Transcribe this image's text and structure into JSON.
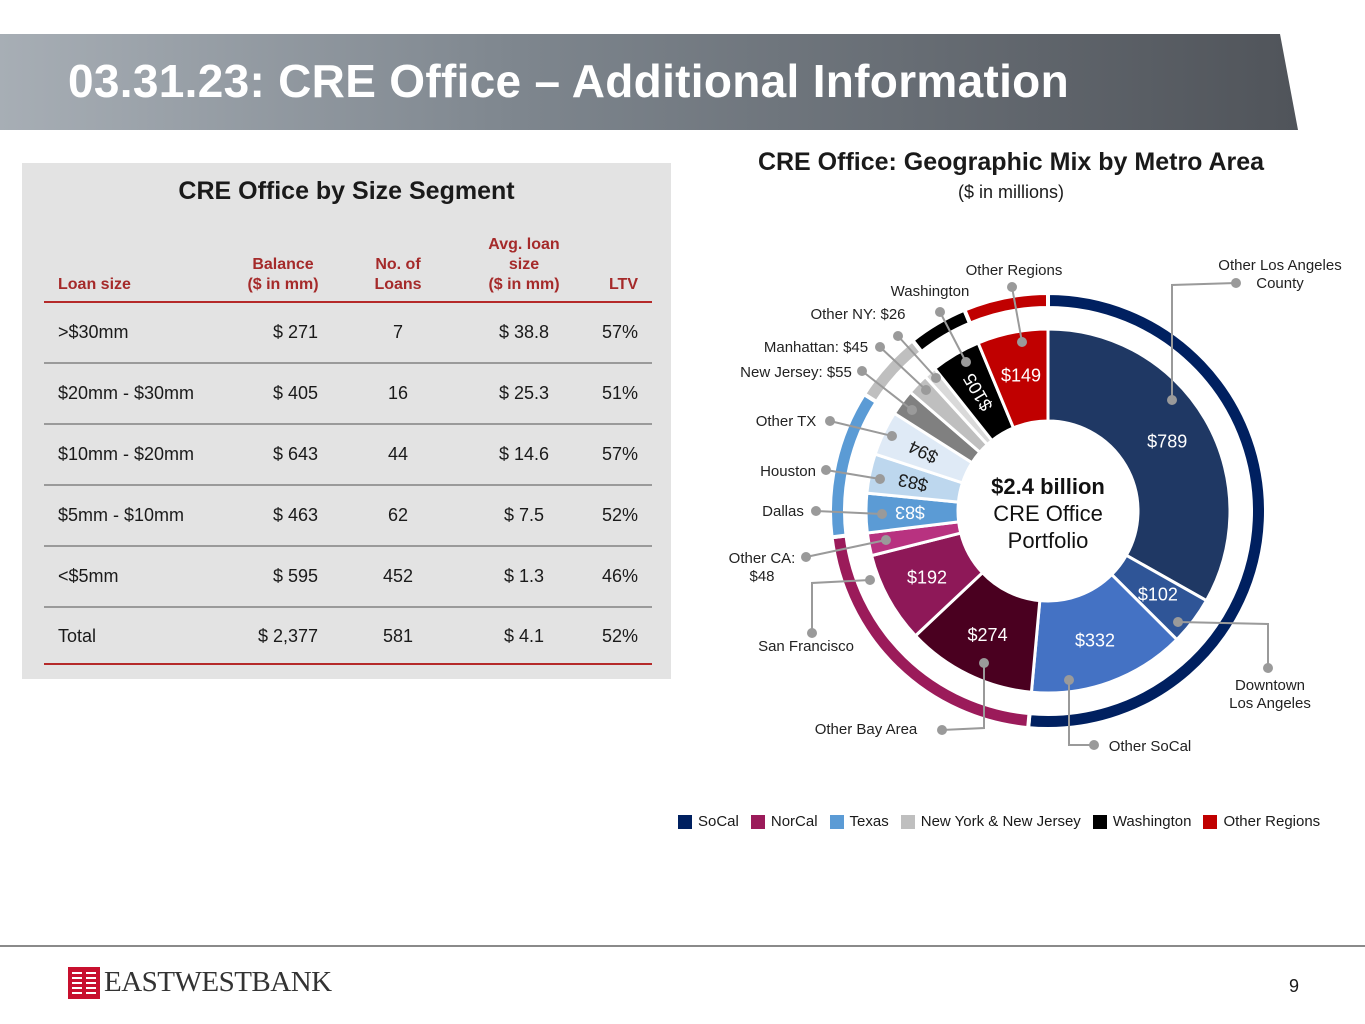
{
  "header": {
    "title": "03.31.23: CRE Office – Additional Information"
  },
  "size_segment": {
    "title": "CRE Office by Size Segment",
    "columns": [
      "Loan size",
      "Balance\n($ in mm)",
      "No. of\nLoans",
      "Avg. loan\nsize\n($ in mm)",
      "LTV"
    ],
    "rows": [
      [
        ">$30mm",
        "$ 271",
        "7",
        "$ 38.8",
        "57%"
      ],
      [
        "$20mm - $30mm",
        "$ 405",
        "16",
        "$ 25.3",
        "51%"
      ],
      [
        "$10mm - $20mm",
        "$ 643",
        "44",
        "$ 14.6",
        "57%"
      ],
      [
        "$5mm - $10mm",
        "$ 463",
        "62",
        "$ 7.5",
        "52%"
      ],
      [
        "<$5mm",
        "$ 595",
        "452",
        "$ 1.3",
        "46%"
      ],
      [
        "Total",
        "$ 2,377",
        "581",
        "$ 4.1",
        "52%"
      ]
    ]
  },
  "chart_data": {
    "type": "pie",
    "variant": "nested-donut",
    "title": "CRE Office: Geographic Mix by Metro Area",
    "subtitle": "($ in millions)",
    "center_label": {
      "line1": "$2.4 billion",
      "line2": "CRE Office",
      "line3": "Portfolio"
    },
    "slices": [
      {
        "name": "Other Los Angeles County",
        "value": 789,
        "label": "$789",
        "group": "SoCal",
        "color": "#1f3864"
      },
      {
        "name": "Downtown Los Angeles",
        "value": 102,
        "label": "$102",
        "group": "SoCal",
        "color": "#2f5597"
      },
      {
        "name": "Other SoCal",
        "value": 332,
        "label": "$332",
        "group": "SoCal",
        "color": "#4472c4"
      },
      {
        "name": "Other Bay Area",
        "value": 274,
        "label": "$274",
        "group": "NorCal",
        "color": "#4a0020"
      },
      {
        "name": "San Francisco",
        "value": 192,
        "label": "$192",
        "group": "NorCal",
        "color": "#8e1858"
      },
      {
        "name": "Other CA: $48",
        "value": 48,
        "label": "",
        "group": "NorCal",
        "color": "#b83280"
      },
      {
        "name": "Dallas",
        "value": 83,
        "label": "$83",
        "group": "Texas",
        "color": "#5b9bd5"
      },
      {
        "name": "Houston",
        "value": 83,
        "label": "$83",
        "group": "Texas",
        "color": "#bdd7ee"
      },
      {
        "name": "Other TX",
        "value": 94,
        "label": "$94",
        "group": "Texas",
        "color": "#dfeaf6"
      },
      {
        "name": "New Jersey: $55",
        "value": 55,
        "label": "",
        "group": "New York & New Jersey",
        "color": "#808080"
      },
      {
        "name": "Manhattan: $45",
        "value": 45,
        "label": "",
        "group": "New York & New Jersey",
        "color": "#bfbfbf"
      },
      {
        "name": "Other NY: $26",
        "value": 26,
        "label": "",
        "group": "New York & New Jersey",
        "color": "#d9d9d9"
      },
      {
        "name": "Washington",
        "value": 105,
        "label": "$105",
        "group": "Washington",
        "color": "#000000"
      },
      {
        "name": "Other Regions",
        "value": 149,
        "label": "$149",
        "group": "Other Regions",
        "color": "#c00000"
      }
    ],
    "groups": [
      {
        "name": "SoCal",
        "color": "#002060"
      },
      {
        "name": "NorCal",
        "color": "#9b1b5a"
      },
      {
        "name": "Texas",
        "color": "#5b9bd5"
      },
      {
        "name": "New York & New Jersey",
        "color": "#bfbfbf"
      },
      {
        "name": "Washington",
        "color": "#000000"
      },
      {
        "name": "Other Regions",
        "color": "#c00000"
      }
    ],
    "callouts": [
      {
        "text": "Other Los Angeles\nCounty",
        "slice": "Other Los Angeles County"
      },
      {
        "text": "Downtown\nLos Angeles",
        "slice": "Downtown Los Angeles"
      },
      {
        "text": "Other SoCal",
        "slice": "Other SoCal"
      },
      {
        "text": "Other Bay Area",
        "slice": "Other Bay Area"
      },
      {
        "text": "San Francisco",
        "slice": "San Francisco"
      },
      {
        "text": "Other CA:\n$48",
        "slice": "Other CA: $48"
      },
      {
        "text": "Dallas",
        "slice": "Dallas"
      },
      {
        "text": "Houston",
        "slice": "Houston"
      },
      {
        "text": "Other TX",
        "slice": "Other TX"
      },
      {
        "text": "New Jersey: $55",
        "slice": "New Jersey: $55"
      },
      {
        "text": "Manhattan: $45",
        "slice": "Manhattan: $45"
      },
      {
        "text": "Other NY: $26",
        "slice": "Other NY: $26"
      },
      {
        "text": "Washington",
        "slice": "Washington"
      },
      {
        "text": "Other Regions",
        "slice": "Other Regions"
      }
    ]
  },
  "footer": {
    "logo_text": "EASTWESTBANK",
    "page_number": "9"
  }
}
